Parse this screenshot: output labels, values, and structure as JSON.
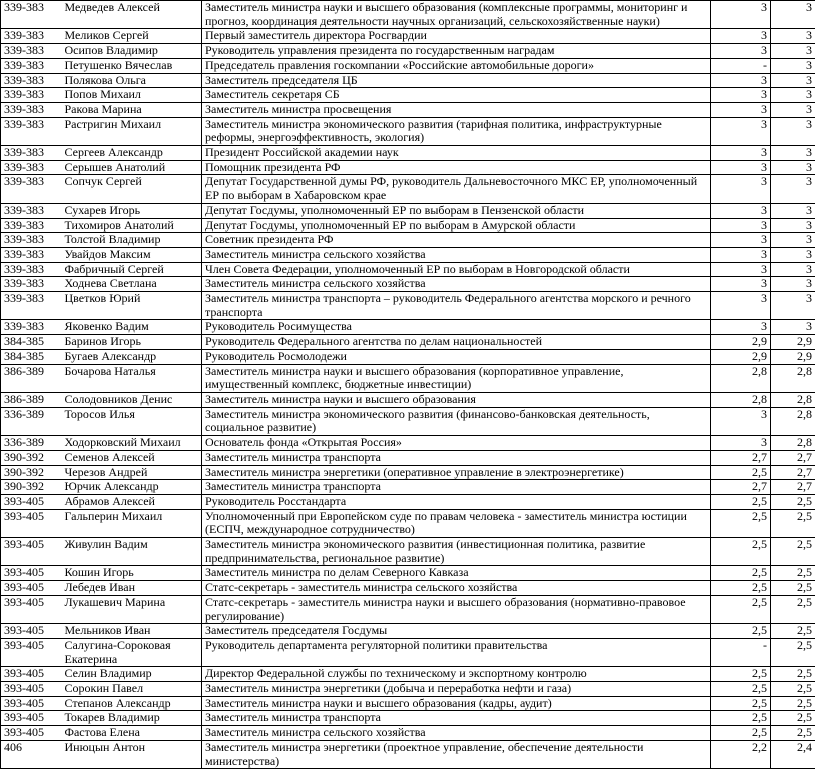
{
  "rows": [
    [
      "339-383",
      "Медведев Алексей",
      "Заместитель министра науки и высшего образования (комплексные программы, мониторинг и прогноз, координация деятельности научных организаций, сельскохозяйственные науки)",
      "3",
      "3"
    ],
    [
      "339-383",
      "Меликов Сергей",
      "Первый заместитель директора Росгвардии",
      "3",
      "3"
    ],
    [
      "339-383",
      "Осипов Владимир",
      "Руководитель управления президента по государственным наградам",
      "3",
      "3"
    ],
    [
      "339-383",
      "Петушенко Вячеслав",
      "Председатель правления госкомпании «Российские автомобильные дороги»",
      "-",
      "3"
    ],
    [
      "339-383",
      "Полякова Ольга",
      "Заместитель председателя ЦБ",
      "3",
      "3"
    ],
    [
      "339-383",
      "Попов Михаил",
      "Заместитель секретаря СБ",
      "3",
      "3"
    ],
    [
      "339-383",
      "Ракова Марина",
      "Заместитель министра просвещения",
      "3",
      "3"
    ],
    [
      "339-383",
      "Растригин Михаил",
      "Заместитель министра экономического развития (тарифная политика, инфраструктурные реформы, энергоэффективность, экология)",
      "3",
      "3"
    ],
    [
      "339-383",
      "Сергеев Александр",
      "Президент Российской академии наук",
      "3",
      "3"
    ],
    [
      "339-383",
      "Серышев Анатолий",
      "Помощник президента РФ",
      "3",
      "3"
    ],
    [
      "339-383",
      "Сопчук Сергей",
      "Депутат Государственной думы РФ, руководитель Дальневосточного МКС ЕР, уполномоченный ЕР по выборам в Хабаровском крае",
      "3",
      "3"
    ],
    [
      "339-383",
      "Сухарев Игорь",
      "Депутат Госдумы, уполномоченный ЕР по выборам в Пензенской области",
      "3",
      "3"
    ],
    [
      "339-383",
      "Тихомиров Анатолий",
      "Депутат Госдумы, уполномоченный ЕР  по выборам в Амурской области",
      "3",
      "3"
    ],
    [
      "339-383",
      "Толстой Владимир",
      "Советник президента РФ",
      "3",
      "3"
    ],
    [
      "339-383",
      "Увайдов Максим",
      "Заместитель министра сельского хозяйства",
      "3",
      "3"
    ],
    [
      "339-383",
      "Фабричный Сергей",
      "Член Совета Федерации, уполномоченный ЕР по выборам в Новгородской области",
      "3",
      "3"
    ],
    [
      "339-383",
      "Ходнева Светлана",
      "Заместитель министра сельского хозяйства",
      "3",
      "3"
    ],
    [
      "339-383",
      "Цветков Юрий",
      "Заместитель министра транспорта – руководитель Федерального агентства морского и речного транспорта",
      "3",
      "3"
    ],
    [
      "339-383",
      "Яковенко Вадим",
      "Руководитель Росимущества",
      "3",
      "3"
    ],
    [
      "384-385",
      "Баринов Игорь",
      "Руководитель Федерального агентства по делам национальностей",
      "2,9",
      "2,9"
    ],
    [
      "384-385",
      "Бугаев Александр",
      "Руководитель Росмолодежи",
      "2,9",
      "2,9"
    ],
    [
      "386-389",
      "Бочарова Наталья",
      "Заместитель министра науки и высшего образования (корпоративное управление, имущественный комплекс, бюджетные инвестиции)",
      "2,8",
      "2,8"
    ],
    [
      "386-389",
      "Солодовников Денис",
      "Заместитель министра науки и высшего образования",
      "2,8",
      "2,8"
    ],
    [
      "336-389",
      "Торосов Илья",
      "Заместитель министра экономического развития (финансово-банковская деятельность, социальное развитие)",
      "3",
      "2,8"
    ],
    [
      "336-389",
      "Ходорковский Михаил",
      "Основатель фонда «Открытая Россия»",
      "3",
      "2,8"
    ],
    [
      "390-392",
      "Семенов Алексей",
      "Заместитель министра транспорта",
      "2,7",
      "2,7"
    ],
    [
      "390-392",
      "Черезов Андрей",
      "Заместитель министра энергетики (оперативное управление в электроэнергетике)",
      "2,5",
      "2,7"
    ],
    [
      "390-392",
      "Юрчик Александр",
      "Заместитель министра транспорта",
      "2,7",
      "2,7"
    ],
    [
      "393-405",
      "Абрамов Алексей",
      "Руководитель Росстандарта",
      "2,5",
      "2,5"
    ],
    [
      "393-405",
      "Гальперин Михаил",
      "Уполномоченный при Европейском суде по правам человека - заместитель министра юстиции (ЕСПЧ, международное сотрудничество)",
      "2,5",
      "2,5"
    ],
    [
      "393-405",
      "Живулин Вадим",
      "Заместитель министра экономического развития (инвестиционная политика, развитие предпринимательства, региональное развитие)",
      "2,5",
      "2,5"
    ],
    [
      "393-405",
      "Кошин Игорь",
      "Заместитель министра по делам Северного Кавказа",
      "2,5",
      "2,5"
    ],
    [
      "393-405",
      "Лебедев Иван",
      "Статс-секретарь - заместитель министра сельского хозяйства",
      "2,5",
      "2,5"
    ],
    [
      "393-405",
      "Лукашевич Марина",
      "Статс-секретарь - заместитель министра науки и высшего образования (нормативно-правовое регулирование)",
      "2,5",
      "2,5"
    ],
    [
      "393-405",
      "Мельников Иван",
      "Заместитель председателя Госдумы",
      "2,5",
      "2,5"
    ],
    [
      "393-405",
      "Салугина-Сороковая Екатерина",
      "Руководитель департамента регуляторной политики правительства",
      "-",
      "2,5"
    ],
    [
      "393-405",
      "Селин Владимир",
      "Директор Федеральной службы по техническому и экспортному контролю",
      "2,5",
      "2,5"
    ],
    [
      "393-405",
      "Сорокин Павел",
      "Заместитель министра энергетики (добыча и переработка нефти и газа)",
      "2,5",
      "2,5"
    ],
    [
      "393-405",
      "Степанов Александр",
      "Заместитель министра науки и высшего образования (кадры, аудит)",
      "2,5",
      "2,5"
    ],
    [
      "393-405",
      "Токарев Владимир",
      "Заместитель министра транспорта",
      "2,5",
      "2,5"
    ],
    [
      "393-405",
      "Фастова Елена",
      "Заместитель министра сельского хозяйства",
      "2,5",
      "2,5"
    ],
    [
      "406",
      "Инюцын Антон",
      "Заместитель министра энергетики (проектное управление, обеспечение деятельности министерства)",
      "2,2",
      "2,4"
    ]
  ]
}
